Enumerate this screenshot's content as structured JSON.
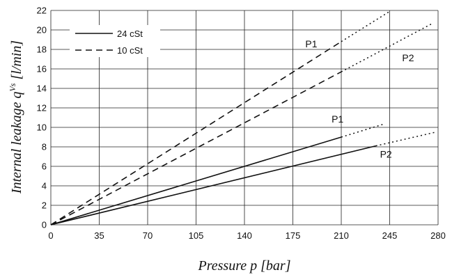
{
  "chart_data": {
    "type": "line",
    "xlabel": "Pressure p [bar]",
    "ylabel_main": "Internal leakage q",
    "ylabel_sup": "Vs",
    "ylabel_tail": " [l/min]",
    "xlim": [
      0,
      280
    ],
    "ylim": [
      0,
      22
    ],
    "x_ticks": [
      "0",
      "35",
      "70",
      "105",
      "140",
      "175",
      "210",
      "245",
      "280"
    ],
    "y_ticks": [
      "0",
      "2",
      "4",
      "6",
      "8",
      "10",
      "12",
      "14",
      "16",
      "18",
      "20",
      "22"
    ],
    "grid": true,
    "legend": {
      "placement": "top-left",
      "entries": [
        {
          "label": "24 cSt",
          "style": "solid"
        },
        {
          "label": "10 cSt",
          "style": "dashed"
        }
      ]
    },
    "series": [
      {
        "viscosity": "10 cSt",
        "label": "P1",
        "style": "dashed",
        "measured": [
          [
            0,
            0
          ],
          [
            210,
            18.8
          ]
        ],
        "extrapolated": [
          [
            210,
            18.8
          ],
          [
            245,
            21.9
          ]
        ]
      },
      {
        "viscosity": "10 cSt",
        "label": "P2",
        "style": "dashed",
        "measured": [
          [
            0,
            0
          ],
          [
            210,
            15.7
          ]
        ],
        "extrapolated": [
          [
            210,
            15.7
          ],
          [
            275,
            20.6
          ]
        ]
      },
      {
        "viscosity": "24 cSt",
        "label": "P1",
        "style": "solid",
        "measured": [
          [
            0,
            0
          ],
          [
            210,
            9.0
          ]
        ],
        "extrapolated": [
          [
            210,
            9.0
          ],
          [
            240,
            10.3
          ]
        ]
      },
      {
        "viscosity": "24 cSt",
        "label": "P2",
        "style": "solid",
        "measured": [
          [
            0,
            0
          ],
          [
            235,
            8.1
          ]
        ],
        "extrapolated": [
          [
            235,
            8.1
          ],
          [
            278,
            9.5
          ]
        ]
      }
    ],
    "annotations": [
      {
        "text": "P1",
        "x": 184,
        "y": 18.2
      },
      {
        "text": "P2",
        "x": 254,
        "y": 16.8
      },
      {
        "text": "P1",
        "x": 203,
        "y": 10.5
      },
      {
        "text": "P2",
        "x": 238,
        "y": 6.9
      }
    ]
  }
}
